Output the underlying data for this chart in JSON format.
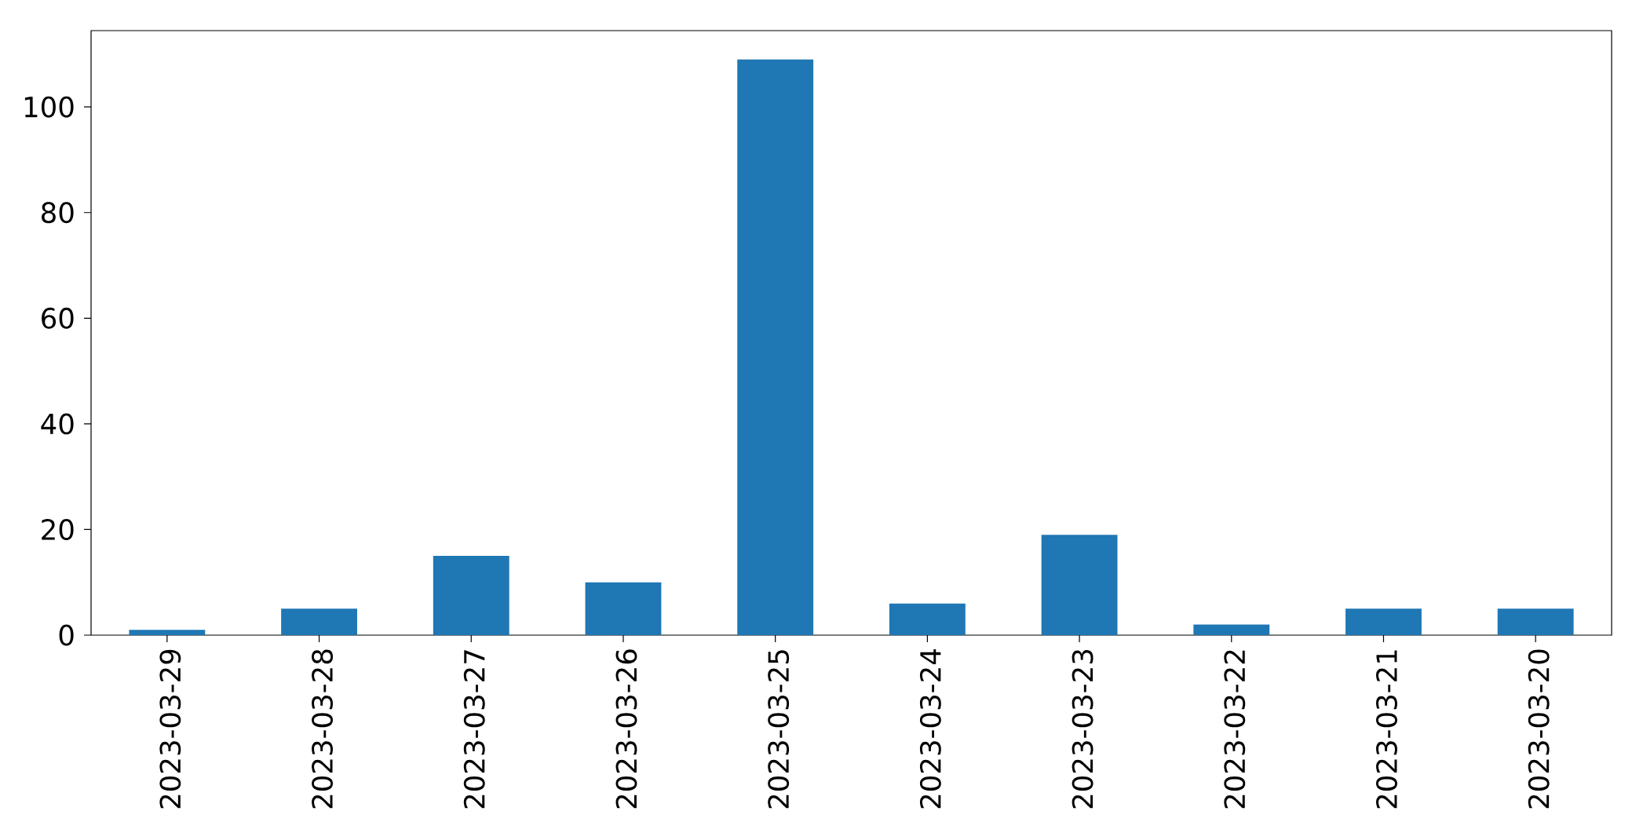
{
  "chart_data": {
    "type": "bar",
    "categories": [
      "2023-03-29",
      "2023-03-28",
      "2023-03-27",
      "2023-03-26",
      "2023-03-25",
      "2023-03-24",
      "2023-03-23",
      "2023-03-22",
      "2023-03-21",
      "2023-03-20"
    ],
    "values": [
      1,
      5,
      15,
      10,
      109,
      6,
      19,
      2,
      5,
      5
    ],
    "color": "#1f77b4",
    "ylim": [
      0,
      114.45
    ],
    "yticks": [
      0,
      20,
      40,
      60,
      80,
      100
    ]
  }
}
